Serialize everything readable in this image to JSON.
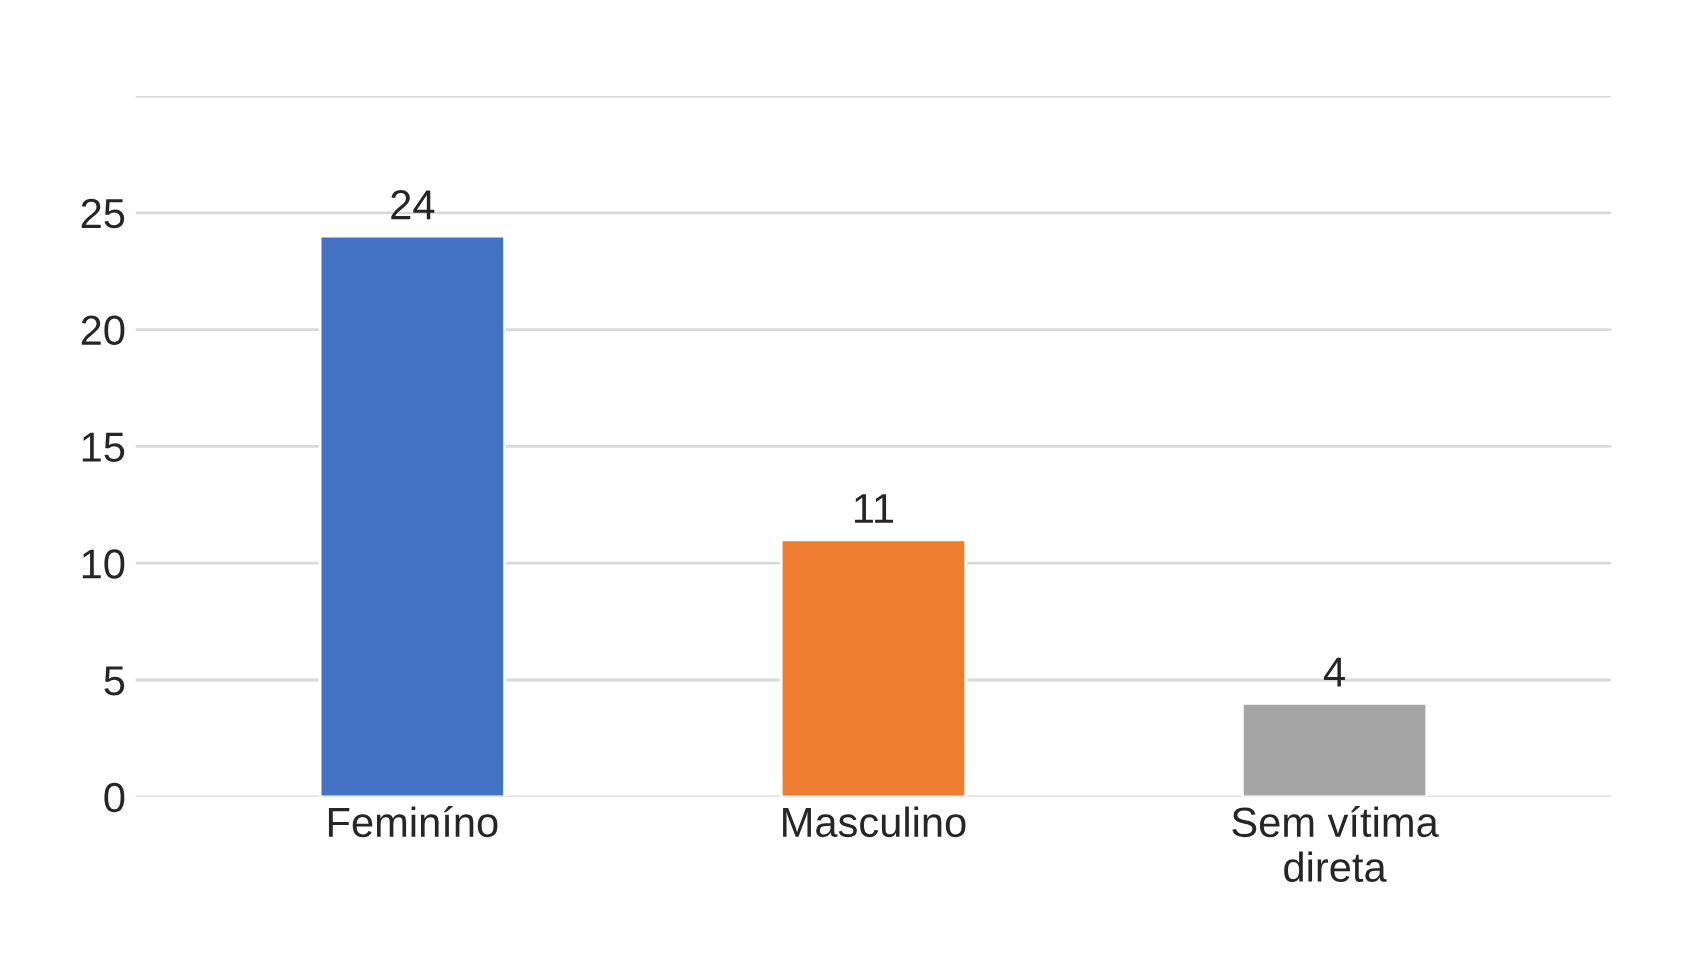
{
  "chart_data": {
    "type": "bar",
    "categories": [
      "Feminíno",
      "Masculino",
      "Sem vítima\ndireta"
    ],
    "values": [
      24,
      11,
      4
    ],
    "colors": [
      "#4472c4",
      "#ed7d31",
      "#a5a5a5"
    ],
    "ylim": [
      0,
      30
    ],
    "yticks": [
      0,
      5,
      10,
      15,
      20,
      25,
      {
        "value": 30,
        "label": null
      }
    ],
    "grid": "y",
    "data_labels": true
  }
}
